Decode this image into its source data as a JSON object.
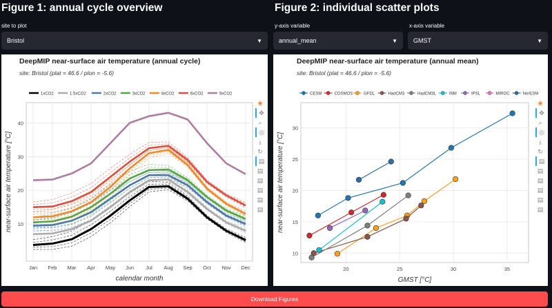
{
  "fig1": {
    "title": "Figure 1: annual cycle overview",
    "site_label": "site to plot",
    "site_value": "Bristol",
    "plot_title": "DeepMIP near-surface air temperature (annual cycle)",
    "plot_subtitle": "site: Bristol (plat = 46.6 / plon = -5.6)"
  },
  "fig2": {
    "title": "Figure 2: individual scatter plots",
    "y_label": "y-axis variable",
    "y_value": "annual_mean",
    "x_label": "x-axis variable",
    "x_value": "GMST",
    "plot_title": "DeepMIP near-surface air temperature (annual mean)",
    "plot_subtitle": "site: Bristol (plat = 46.6 / plon = -5.6)"
  },
  "download_label": "Download Figures",
  "toolbar_icons": [
    "bokeh-logo-icon",
    "pan-icon",
    "zoom-icon",
    "wheel-zoom-icon",
    "save-icon",
    "reset-icon",
    "hover-icon"
  ],
  "chart_data": [
    {
      "type": "line",
      "title": "DeepMIP near-surface air temperature (annual cycle)",
      "xlabel": "calendar month",
      "ylabel": "near-surface air temperature [°C]",
      "categories": [
        "Jan",
        "Feb",
        "Mar",
        "Apr",
        "May",
        "Jun",
        "Jul",
        "Aug",
        "Sep",
        "Oct",
        "Nov",
        "Dec"
      ],
      "ylim": [
        -1,
        46
      ],
      "yticks": [
        10,
        20,
        30,
        40
      ],
      "grid": true,
      "legend_position": "top",
      "series": [
        {
          "name": "1xCO2",
          "color": "#000000",
          "values": [
            3.8,
            4.2,
            5.5,
            8.5,
            12.5,
            17,
            21,
            21.2,
            17.5,
            12,
            8,
            5.2
          ]
        },
        {
          "name": "1.5xCO2",
          "color": "#aaaaaa",
          "values": [
            7,
            7.2,
            8.5,
            11,
            15,
            19.5,
            23,
            23.2,
            19.5,
            14.5,
            10.5,
            8
          ]
        },
        {
          "name": "2xCO2",
          "color": "#4878a8",
          "values": [
            9.5,
            9.7,
            11,
            13.5,
            17.5,
            21.5,
            24.5,
            24.5,
            21.5,
            16.5,
            12.5,
            10
          ]
        },
        {
          "name": "3xCO2",
          "color": "#55a545",
          "values": [
            10.5,
            10.8,
            12.2,
            15,
            19,
            23.5,
            26,
            26.2,
            23,
            18,
            14,
            11.5
          ]
        },
        {
          "name": "4xCO2",
          "color": "#f0882a",
          "values": [
            12,
            12.3,
            13.8,
            16.5,
            21,
            26.5,
            31,
            32,
            27.5,
            20.5,
            16,
            13
          ]
        },
        {
          "name": "6xCO2",
          "color": "#e04c3c",
          "values": [
            15,
            15.2,
            16.8,
            19.5,
            24,
            28.5,
            32.5,
            33.2,
            29,
            22.5,
            18.5,
            15.5
          ]
        },
        {
          "name": "9xCO2",
          "color": "#b07aa1",
          "values": [
            23,
            23.2,
            25,
            28,
            34,
            40,
            42,
            43,
            41,
            34,
            28,
            24.8
          ]
        }
      ]
    },
    {
      "type": "scatter",
      "title": "DeepMIP near-surface air temperature (annual mean)",
      "xlabel": "GMST [°C]",
      "ylabel": "near-surface air temperature [°C]",
      "xlim": [
        15.8,
        37
      ],
      "ylim": [
        8.5,
        34
      ],
      "xticks": [
        20,
        25,
        30,
        35
      ],
      "yticks": [
        10,
        15,
        20,
        25,
        30
      ],
      "grid": true,
      "legend_position": "top",
      "series": [
        {
          "name": "CESM",
          "color": "#1f77b4",
          "points": [
            [
              17.4,
              16
            ],
            [
              20.2,
              18.8
            ],
            [
              25.3,
              21.2
            ],
            [
              29.8,
              26.8
            ],
            [
              35.5,
              32.3
            ]
          ]
        },
        {
          "name": "COSMOS",
          "color": "#d62728",
          "points": [
            [
              16.6,
              12.8
            ],
            [
              20.5,
              16.5
            ],
            [
              23.5,
              19.3
            ]
          ]
        },
        {
          "name": "GFDL",
          "color": "#ff9f1c",
          "points": [
            [
              19.2,
              9.9
            ],
            [
              22.8,
              14
            ],
            [
              25.7,
              16
            ],
            [
              27.3,
              18.3
            ],
            [
              30.2,
              21.8
            ]
          ]
        },
        {
          "name": "HadCM3",
          "color": "#8c564b",
          "points": [
            [
              17,
              10
            ],
            [
              22,
              12.6
            ],
            [
              25.6,
              15.5
            ],
            [
              27,
              17.6
            ]
          ]
        },
        {
          "name": "HadCM3L",
          "color": "#7f7f7f",
          "points": [
            [
              16.8,
              9.3
            ],
            [
              22,
              14.4
            ],
            [
              25.8,
              19.2
            ]
          ]
        },
        {
          "name": "INM",
          "color": "#17becf",
          "points": [
            [
              17.5,
              10.5
            ],
            [
              23.4,
              18.2
            ]
          ]
        },
        {
          "name": "IPSL",
          "color": "#9467bd",
          "points": [
            [
              18.5,
              14
            ],
            [
              21.8,
              16.8
            ]
          ]
        },
        {
          "name": "MIROC",
          "color": "#e377c2",
          "points": []
        },
        {
          "name": "NorESM",
          "color": "#2b6ea5",
          "points": [
            [
              21.2,
              21.7
            ],
            [
              24.2,
              24.6
            ]
          ]
        }
      ]
    }
  ]
}
